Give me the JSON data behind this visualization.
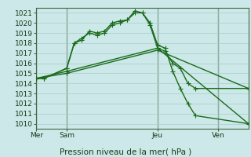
{
  "bg_color": "#cce8e8",
  "grid_color": "#aacccc",
  "line_color": "#1a6b1a",
  "title": "Pression niveau de la mer( hPa )",
  "ylim": [
    1009.5,
    1021.5
  ],
  "yticks": [
    1010,
    1011,
    1012,
    1013,
    1014,
    1015,
    1016,
    1017,
    1018,
    1019,
    1020,
    1021
  ],
  "xlim": [
    0,
    28
  ],
  "xtick_positions": [
    0,
    4,
    16,
    24
  ],
  "xtick_labels": [
    "Mer",
    "Sam",
    "Jeu",
    "Ven"
  ],
  "vline_positions": [
    0,
    4,
    16,
    24
  ],
  "series1_x": [
    0,
    1,
    4,
    5,
    6,
    7,
    8,
    9,
    10,
    11,
    12,
    13,
    14,
    15,
    16,
    17,
    18,
    19,
    20,
    21,
    28
  ],
  "series1_y": [
    1014.5,
    1014.5,
    1015.5,
    1018.0,
    1018.3,
    1019.2,
    1019.0,
    1019.2,
    1020.0,
    1020.2,
    1020.3,
    1021.2,
    1021.0,
    1020.0,
    1017.8,
    1017.5,
    1015.2,
    1013.5,
    1012.0,
    1010.8,
    1010.0
  ],
  "series2_x": [
    0,
    1,
    4,
    5,
    6,
    7,
    8,
    9,
    10,
    11,
    12,
    13,
    14,
    15,
    16,
    17,
    18,
    19,
    20,
    21,
    28
  ],
  "series2_y": [
    1014.5,
    1014.5,
    1015.5,
    1018.0,
    1018.5,
    1019.0,
    1018.8,
    1019.0,
    1019.8,
    1020.0,
    1020.3,
    1021.0,
    1021.0,
    1019.8,
    1017.5,
    1017.2,
    1016.0,
    1015.5,
    1014.0,
    1013.5,
    1013.5
  ],
  "series3_x": [
    0,
    4,
    16,
    28
  ],
  "series3_y": [
    1014.5,
    1015.2,
    1017.5,
    1010.0
  ],
  "series4_x": [
    0,
    4,
    16,
    28
  ],
  "series4_y": [
    1014.5,
    1015.0,
    1017.3,
    1013.5
  ],
  "marker_size": 3,
  "linewidth": 1.0,
  "tick_fontsize": 6.5,
  "xlabel_fontsize": 7.5
}
